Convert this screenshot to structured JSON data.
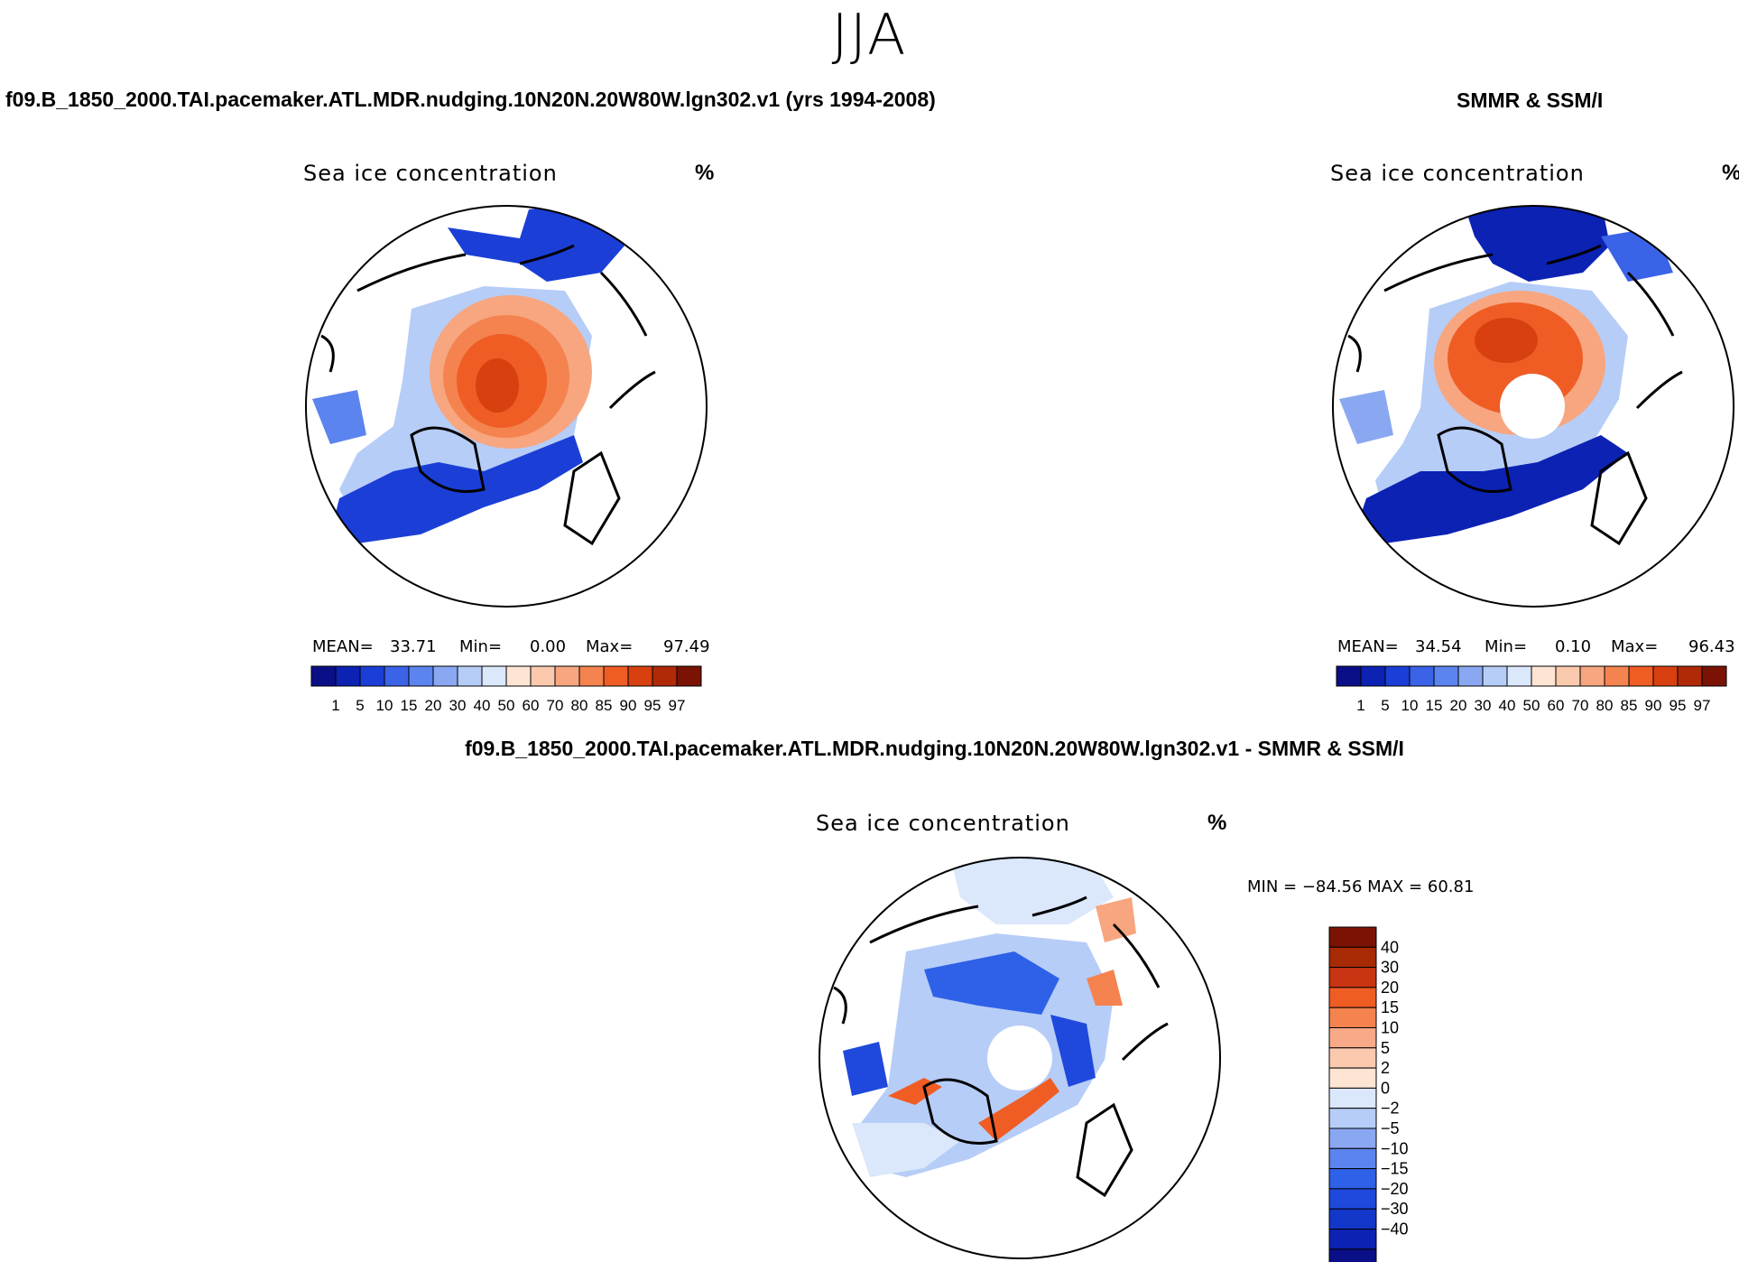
{
  "season": "JJA",
  "colors": {
    "seq": [
      "#0a0f87",
      "#0b22b3",
      "#1b3fd6",
      "#3a63e8",
      "#5c84ee",
      "#8aa7f2",
      "#b6cdf7",
      "#dbe7fb",
      "#fde4d3",
      "#fbc9ad",
      "#f7a67f",
      "#f4834f",
      "#ef5d25",
      "#d8400f",
      "#b02a08",
      "#7a1304"
    ],
    "div": [
      "#0a0f87",
      "#0b22b3",
      "#1337c8",
      "#1f49dc",
      "#2f61e8",
      "#5c84ee",
      "#8aa7f2",
      "#b6cdf7",
      "#dbe7fb",
      "#fde4d3",
      "#fbc9ad",
      "#f8a988",
      "#f4834f",
      "#ef5d25",
      "#c93412",
      "#a72a05",
      "#7a1304"
    ],
    "line": "#000000"
  },
  "chart_data": [
    {
      "type": "heatmap",
      "panel": "model",
      "header": "f09.B_1850_2000.TAI.pacemaker.ATL.MDR.nudging.10N20N.20W80W.lgn302.v1 (yrs 1994-2008)",
      "title": "Sea ice concentration",
      "units": "%",
      "mean_label": "MEAN=",
      "mean": "33.71",
      "min_label": "Min=",
      "min": "0.00",
      "max_label": "Max=",
      "max": "97.49",
      "colorbar_labels": [
        "1",
        "5",
        "10",
        "15",
        "20",
        "30",
        "40",
        "50",
        "60",
        "70",
        "80",
        "85",
        "90",
        "95",
        "97"
      ]
    },
    {
      "type": "heatmap",
      "panel": "observed",
      "header": "SMMR & SSM/I",
      "title": "Sea ice concentration",
      "units": "%",
      "mean_label": "MEAN=",
      "mean": "34.54",
      "min_label": "Min=",
      "min": "0.10",
      "max_label": "Max=",
      "max": "96.43",
      "colorbar_labels": [
        "1",
        "5",
        "10",
        "15",
        "20",
        "30",
        "40",
        "50",
        "60",
        "70",
        "80",
        "85",
        "90",
        "95",
        "97"
      ]
    },
    {
      "type": "heatmap",
      "panel": "difference",
      "header": "f09.B_1850_2000.TAI.pacemaker.ATL.MDR.nudging.10N20N.20W80W.lgn302.v1 - SMMR & SSM/I",
      "title": "Sea ice concentration",
      "units": "%",
      "minmax_text": "MIN = −84.56  MAX =   60.81",
      "min": -84.56,
      "max": 60.81,
      "colorbar_labels": [
        "40",
        "30",
        "20",
        "15",
        "10",
        "5",
        "2",
        "0",
        "−2",
        "−5",
        "−10",
        "−15",
        "−20",
        "−30",
        "−40"
      ]
    }
  ]
}
